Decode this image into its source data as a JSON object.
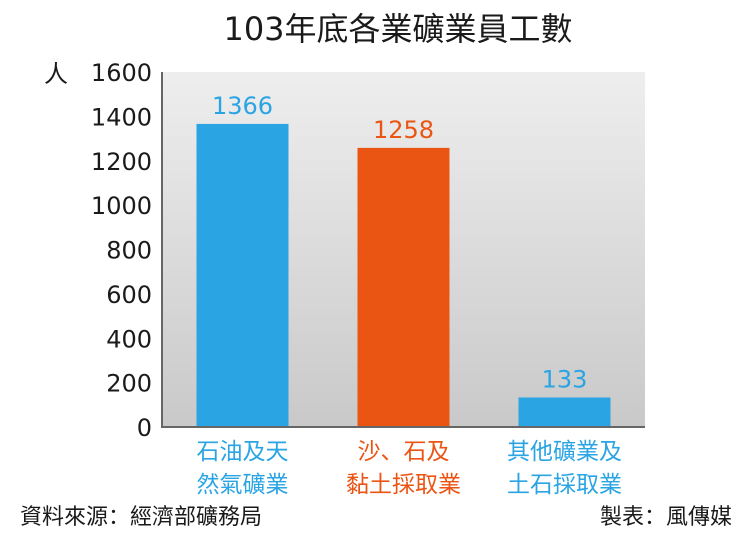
{
  "colors": {
    "blue": "#2aa4e3",
    "orange": "#ea5514",
    "axis": "#666666",
    "bg_top": "#eeeeee",
    "bg_bottom": "#c9c9c9"
  },
  "chart_data": {
    "type": "bar",
    "title": "103年底各業礦業員工數",
    "ylabel": "人",
    "xlabel": "",
    "ylim": [
      0,
      1600
    ],
    "yticks": [
      0,
      200,
      400,
      600,
      800,
      1000,
      1200,
      1400,
      1600
    ],
    "grid": false,
    "categories": [
      {
        "lines": [
          "石油及天",
          "然氣礦業"
        ],
        "value": 1366,
        "color": "#2aa4e3",
        "value_label": "1366"
      },
      {
        "lines": [
          "沙、石及",
          "黏土採取業"
        ],
        "value": 1258,
        "color": "#ea5514",
        "value_label": "1258"
      },
      {
        "lines": [
          "其他礦業及",
          "土石採取業"
        ],
        "value": 133,
        "color": "#2aa4e3",
        "value_label": "133"
      }
    ]
  },
  "footer": {
    "source": "資料來源：經濟部礦務局",
    "credit": "製表：風傳媒"
  }
}
